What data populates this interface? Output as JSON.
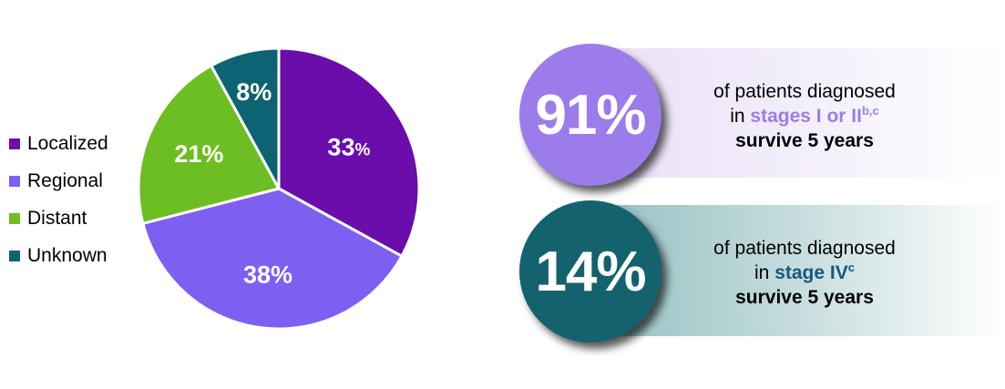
{
  "chart_data": {
    "type": "pie",
    "title": "",
    "legend_position": "left",
    "start_angle_deg": -90,
    "direction": "clockwise",
    "label_color": "#ffffff",
    "slices": [
      {
        "label": "Localized",
        "value": 33,
        "pct_small": true,
        "color": "#6a0dab",
        "label_r": 0.58
      },
      {
        "label": "Regional",
        "value": 38,
        "pct_small": false,
        "color": "#7d5ff1",
        "label_r": 0.62
      },
      {
        "label": "Distant",
        "value": 21,
        "pct_small": false,
        "color": "#6dbe22",
        "label_r": 0.62
      },
      {
        "label": "Unknown",
        "value": 8,
        "pct_small": false,
        "color": "#0e6373",
        "label_r": 0.71
      }
    ]
  },
  "badges": [
    {
      "value_label": "91%",
      "line1": "of patients diagnosed",
      "line2_prefix": "in ",
      "stage": "stages I or II",
      "sup": "b,c",
      "line3": "survive 5 years",
      "circle_color": "#9b7cea",
      "stage_color": "#9d7ce9",
      "bar_colors": [
        "#e9e0f7",
        "#f3eefb",
        "#ffffff"
      ]
    },
    {
      "value_label": "14%",
      "line1": "of patients diagnosed",
      "line2_prefix": "in ",
      "stage": "stage IV",
      "sup": "c",
      "line3": "survive 5 years",
      "circle_color": "#15626f",
      "stage_color": "#14597f",
      "bar_colors": [
        "#93c0c1",
        "#c6dcdd",
        "#ffffff"
      ]
    }
  ]
}
